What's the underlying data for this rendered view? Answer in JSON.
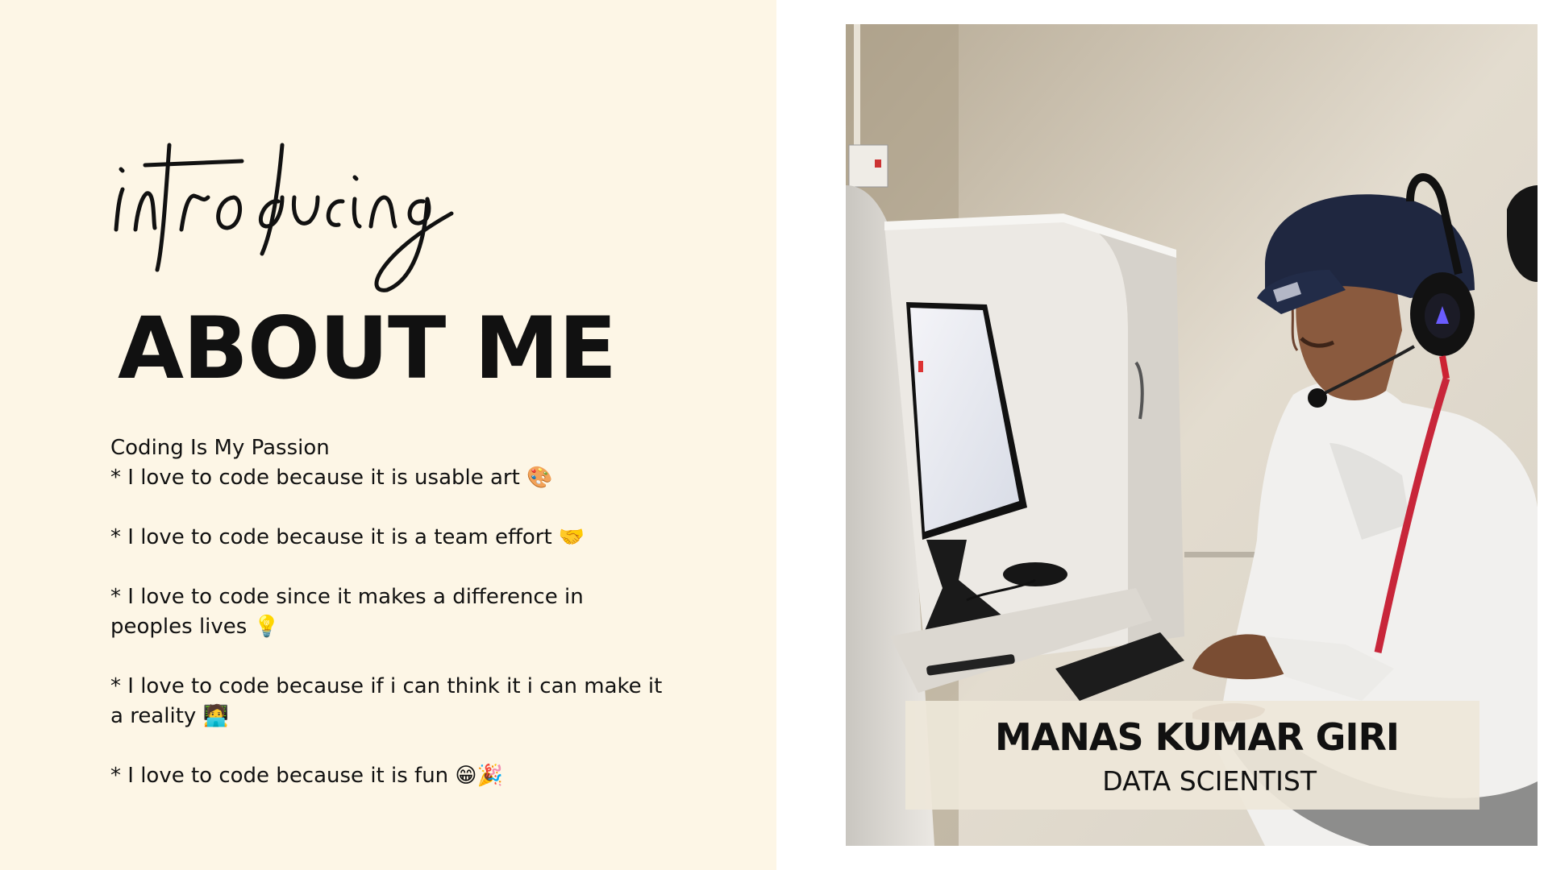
{
  "header": {
    "script_word": "introducing",
    "title": "ABOUT ME"
  },
  "bio": {
    "heading": "Coding Is My Passion",
    "items": [
      "* I love to code because it is usable art 🎨",
      "* I love to code because it is a team effort 🤝",
      "* I love to code since it makes a difference in peoples lives 💡",
      "* I love to code because if i can think it i can make it a reality 🧑‍💻",
      "* I love to code because it is fun 😁🎉"
    ]
  },
  "profile": {
    "name": "MANAS KUMAR GIRI",
    "role": "DATA SCIENTIST"
  },
  "colors": {
    "left_background": "#fdf6e6",
    "right_background": "#ffffff",
    "text": "#111111",
    "name_card": "#eee7d9"
  }
}
